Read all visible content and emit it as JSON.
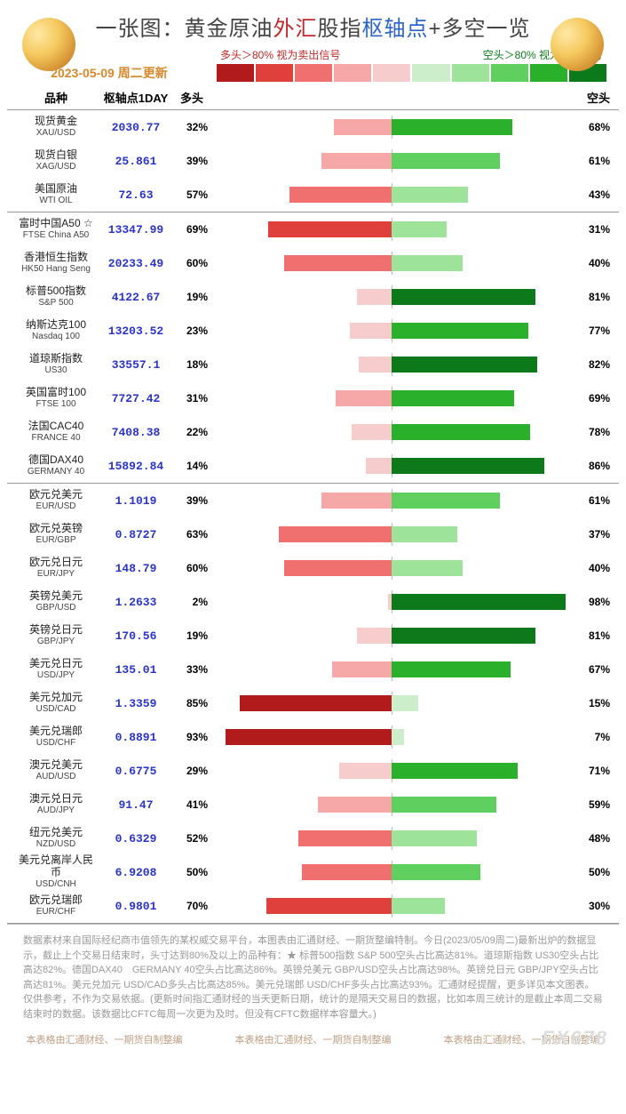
{
  "title_parts": [
    {
      "text": "一张图：",
      "color": "#444"
    },
    {
      "text": "黄金原油",
      "color": "#444"
    },
    {
      "text": "外汇",
      "color": "#c22727"
    },
    {
      "text": "股指",
      "color": "#444"
    },
    {
      "text": "枢轴点",
      "color": "#2b66c4"
    },
    {
      "text": "+多空一览",
      "color": "#444"
    }
  ],
  "date_line": "2023-05-09 周二更新",
  "legend": {
    "left": "多头＞80%  视为卖出信号",
    "right": "空头＞80%  视为买入信号"
  },
  "gradient_colors": [
    "#b21b1b",
    "#e0403b",
    "#f07070",
    "#f6a7a7",
    "#f7cccc",
    "#cdeecb",
    "#9de39a",
    "#5fd060",
    "#2bb02b",
    "#0c7a1a"
  ],
  "headers": {
    "c1": "品种",
    "c2": "枢轴点1DAY",
    "c3": "多头",
    "c5": "空头"
  },
  "bar_scale_pct": 50,
  "groups": [
    {
      "rows": [
        {
          "cn": "现货黄金",
          "en": "XAU/USD",
          "pivot": "2030.77",
          "long": 32,
          "short": 68
        },
        {
          "cn": "现货白银",
          "en": "XAG/USD",
          "pivot": "25.861",
          "long": 39,
          "short": 61
        },
        {
          "cn": "美国原油",
          "en": "WTI OIL",
          "pivot": "72.63",
          "long": 57,
          "short": 43
        }
      ]
    },
    {
      "rows": [
        {
          "cn": "富时中国A50 ☆",
          "en": "FTSE China A50",
          "pivot": "13347.99",
          "long": 69,
          "short": 31
        },
        {
          "cn": "香港恒生指数",
          "en": "HK50 Hang Seng",
          "pivot": "20233.49",
          "long": 60,
          "short": 40
        },
        {
          "cn": "标普500指数",
          "en": "S&P 500",
          "pivot": "4122.67",
          "long": 19,
          "short": 81
        },
        {
          "cn": "纳斯达克100",
          "en": "Nasdaq 100",
          "pivot": "13203.52",
          "long": 23,
          "short": 77
        },
        {
          "cn": "道琼斯指数",
          "en": "US30",
          "pivot": "33557.1",
          "long": 18,
          "short": 82
        },
        {
          "cn": "英国富时100",
          "en": "FTSE 100",
          "pivot": "7727.42",
          "long": 31,
          "short": 69
        },
        {
          "cn": "法国CAC40",
          "en": "FRANCE 40",
          "pivot": "7408.38",
          "long": 22,
          "short": 78
        },
        {
          "cn": "德国DAX40",
          "en": "GERMANY 40",
          "pivot": "15892.84",
          "long": 14,
          "short": 86
        }
      ]
    },
    {
      "rows": [
        {
          "cn": "欧元兑美元",
          "en": "EUR/USD",
          "pivot": "1.1019",
          "long": 39,
          "short": 61
        },
        {
          "cn": "欧元兑英镑",
          "en": "EUR/GBP",
          "pivot": "0.8727",
          "long": 63,
          "short": 37
        },
        {
          "cn": "欧元兑日元",
          "en": "EUR/JPY",
          "pivot": "148.79",
          "long": 60,
          "short": 40
        },
        {
          "cn": "英镑兑美元",
          "en": "GBP/USD",
          "pivot": "1.2633",
          "long": 2,
          "short": 98
        },
        {
          "cn": "英镑兑日元",
          "en": "GBP/JPY",
          "pivot": "170.56",
          "long": 19,
          "short": 81
        },
        {
          "cn": "美元兑日元",
          "en": "USD/JPY",
          "pivot": "135.01",
          "long": 33,
          "short": 67
        },
        {
          "cn": "美元兑加元",
          "en": "USD/CAD",
          "pivot": "1.3359",
          "long": 85,
          "short": 15
        },
        {
          "cn": "美元兑瑞郎",
          "en": "USD/CHF",
          "pivot": "0.8891",
          "long": 93,
          "short": 7
        },
        {
          "cn": "澳元兑美元",
          "en": "AUD/USD",
          "pivot": "0.6775",
          "long": 29,
          "short": 71
        },
        {
          "cn": "澳元兑日元",
          "en": "AUD/JPY",
          "pivot": "91.47",
          "long": 41,
          "short": 59
        },
        {
          "cn": "纽元兑美元",
          "en": "NZD/USD",
          "pivot": "0.6329",
          "long": 52,
          "short": 48
        },
        {
          "cn": "美元兑离岸人民币",
          "en": "USD/CNH",
          "pivot": "6.9208",
          "long": 50,
          "short": 50
        },
        {
          "cn": "欧元兑瑞郎",
          "en": "EUR/CHF",
          "pivot": "0.9801",
          "long": 70,
          "short": 30
        }
      ]
    }
  ],
  "footer_text": "数据素材来自国际经纪商市值领先的某权威交易平台，本图表由汇通财经、一期货整编特制。今日(2023/05/09周二)最新出炉的数据显示，截止上个交易日结束时，头寸达到80%及以上的品种有：★ 标普500指数 S&P 500空头占比高达81%。道琼斯指数 US30空头占比高达82%。德国DAX40　GERMANY 40空头占比高达86%。英镑兑美元 GBP/USD空头占比高达98%。英镑兑日元 GBP/JPY空头占比高达81%。美元兑加元 USD/CAD多头占比高达85%。美元兑瑞郎 USD/CHF多头占比高达93%。汇通财经提醒，更多详见本文图表。仅供参考，不作为交易依据。(更新时间指汇通财经的当天更新日期，统计的是隔天交易日的数据，比如本周三统计的是截止本周二交易结束时的数据。该数据比CFTC每周一次更为及时。但没有CFTC数据样本容量大。)",
  "credit_line": "本表格由汇通财经、一期货自制整编",
  "watermark": "FX678"
}
